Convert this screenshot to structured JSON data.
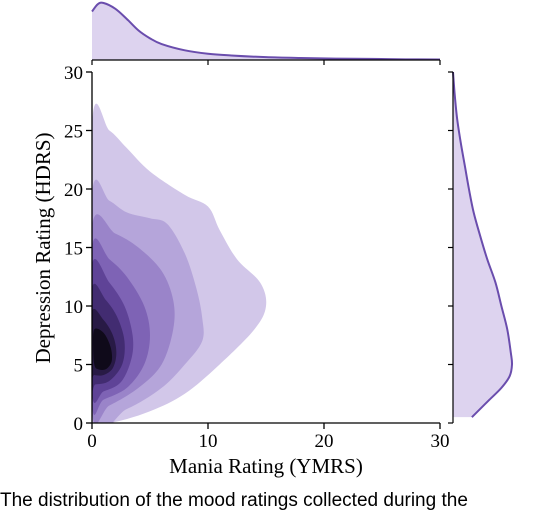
{
  "chart_data": {
    "type": "kde-jointplot",
    "xlabel": "Mania Rating (YMRS)",
    "ylabel": "Depression Rating (HDRS)",
    "xlim": [
      0,
      30
    ],
    "ylim": [
      0,
      30
    ],
    "x_ticks": [
      0,
      10,
      20,
      30
    ],
    "y_ticks": [
      0,
      5,
      10,
      15,
      20,
      25,
      30
    ],
    "mode": {
      "x": 1,
      "y": 6
    },
    "density_levels": [
      {
        "level": 1,
        "color": "#d2c7e9",
        "contour": [
          [
            0,
            25.5
          ],
          [
            1.5,
            25
          ],
          [
            3,
            23.5
          ],
          [
            5,
            21.5
          ],
          [
            8,
            19.5
          ],
          [
            10,
            18.5
          ],
          [
            11,
            16.5
          ],
          [
            12.5,
            14
          ],
          [
            14.5,
            12
          ],
          [
            15,
            10
          ],
          [
            14,
            8
          ],
          [
            11,
            5
          ],
          [
            8,
            2.5
          ],
          [
            5,
            1
          ],
          [
            2,
            0.1
          ],
          [
            0,
            0
          ]
        ]
      },
      {
        "level": 2,
        "color": "#b5a5da",
        "contour": [
          [
            0,
            19.5
          ],
          [
            1.5,
            19
          ],
          [
            3,
            18
          ],
          [
            5,
            17.5
          ],
          [
            6.5,
            17
          ],
          [
            8,
            14.5
          ],
          [
            9,
            11.5
          ],
          [
            9.5,
            9
          ],
          [
            9.5,
            7
          ],
          [
            8,
            5
          ],
          [
            6,
            3
          ],
          [
            3,
            1.2
          ],
          [
            0,
            0.5
          ]
        ]
      },
      {
        "level": 3,
        "color": "#9a84c9",
        "contour": [
          [
            0,
            16.8
          ],
          [
            2,
            16.2
          ],
          [
            4,
            15
          ],
          [
            6,
            13
          ],
          [
            7,
            10.5
          ],
          [
            7,
            8
          ],
          [
            6,
            5
          ],
          [
            4,
            3
          ],
          [
            1.5,
            1.5
          ],
          [
            0,
            1
          ]
        ]
      },
      {
        "level": 4,
        "color": "#7e63b5",
        "contour": [
          [
            0,
            15
          ],
          [
            1.5,
            14
          ],
          [
            3,
            12.5
          ],
          [
            4.5,
            10
          ],
          [
            5,
            7.5
          ],
          [
            4.5,
            5
          ],
          [
            3,
            3
          ],
          [
            1,
            2
          ],
          [
            0,
            1.6
          ]
        ]
      },
      {
        "level": 5,
        "color": "#5f4397",
        "contour": [
          [
            0,
            13.5
          ],
          [
            1.5,
            12
          ],
          [
            2.8,
            10
          ],
          [
            3.5,
            7.5
          ],
          [
            3.4,
            5.5
          ],
          [
            2.5,
            3.5
          ],
          [
            1,
            2.7
          ],
          [
            0,
            2.5
          ]
        ]
      },
      {
        "level": 6,
        "color": "#422c71",
        "contour": [
          [
            0,
            11.5
          ],
          [
            1.2,
            10.5
          ],
          [
            2.2,
            9
          ],
          [
            2.8,
            7
          ],
          [
            2.6,
            5
          ],
          [
            1.5,
            3.6
          ],
          [
            0.3,
            3.3
          ],
          [
            0,
            3.4
          ]
        ]
      },
      {
        "level": 7,
        "color": "#281a45",
        "contour": [
          [
            0,
            9.5
          ],
          [
            1,
            8.8
          ],
          [
            1.8,
            7.5
          ],
          [
            2.1,
            6
          ],
          [
            1.8,
            4.7
          ],
          [
            1,
            4.1
          ],
          [
            0.2,
            4.1
          ],
          [
            0,
            4.3
          ]
        ]
      },
      {
        "level": 8,
        "color": "#0f0a1a",
        "contour": [
          [
            0.2,
            8
          ],
          [
            1,
            7.7
          ],
          [
            1.6,
            6.5
          ],
          [
            1.7,
            5.3
          ],
          [
            1.2,
            4.6
          ],
          [
            0.5,
            4.6
          ],
          [
            0.2,
            5
          ],
          [
            0.1,
            6.5
          ]
        ]
      }
    ],
    "marginal_x": {
      "x": [
        0,
        0.5,
        1,
        2,
        3,
        4,
        5,
        6,
        8,
        10,
        12,
        15,
        18,
        21,
        24,
        27,
        30
      ],
      "density": [
        0.85,
        0.98,
        1.0,
        0.9,
        0.72,
        0.52,
        0.38,
        0.28,
        0.17,
        0.11,
        0.08,
        0.05,
        0.035,
        0.025,
        0.02,
        0.012,
        0.008
      ]
    },
    "marginal_y": {
      "y": [
        30,
        28,
        26,
        24,
        22,
        20,
        18,
        16,
        14,
        12,
        10,
        8,
        6,
        5,
        4,
        3,
        2,
        1,
        0.5
      ],
      "density": [
        0.0,
        0.03,
        0.07,
        0.13,
        0.2,
        0.27,
        0.35,
        0.46,
        0.58,
        0.72,
        0.82,
        0.92,
        0.98,
        1.0,
        0.96,
        0.82,
        0.62,
        0.42,
        0.32
      ]
    },
    "colors": {
      "line": "#6a4dad",
      "marginal_fill": "#ddd3ef"
    }
  },
  "caption": "The distribution of the mood ratings collected during the"
}
